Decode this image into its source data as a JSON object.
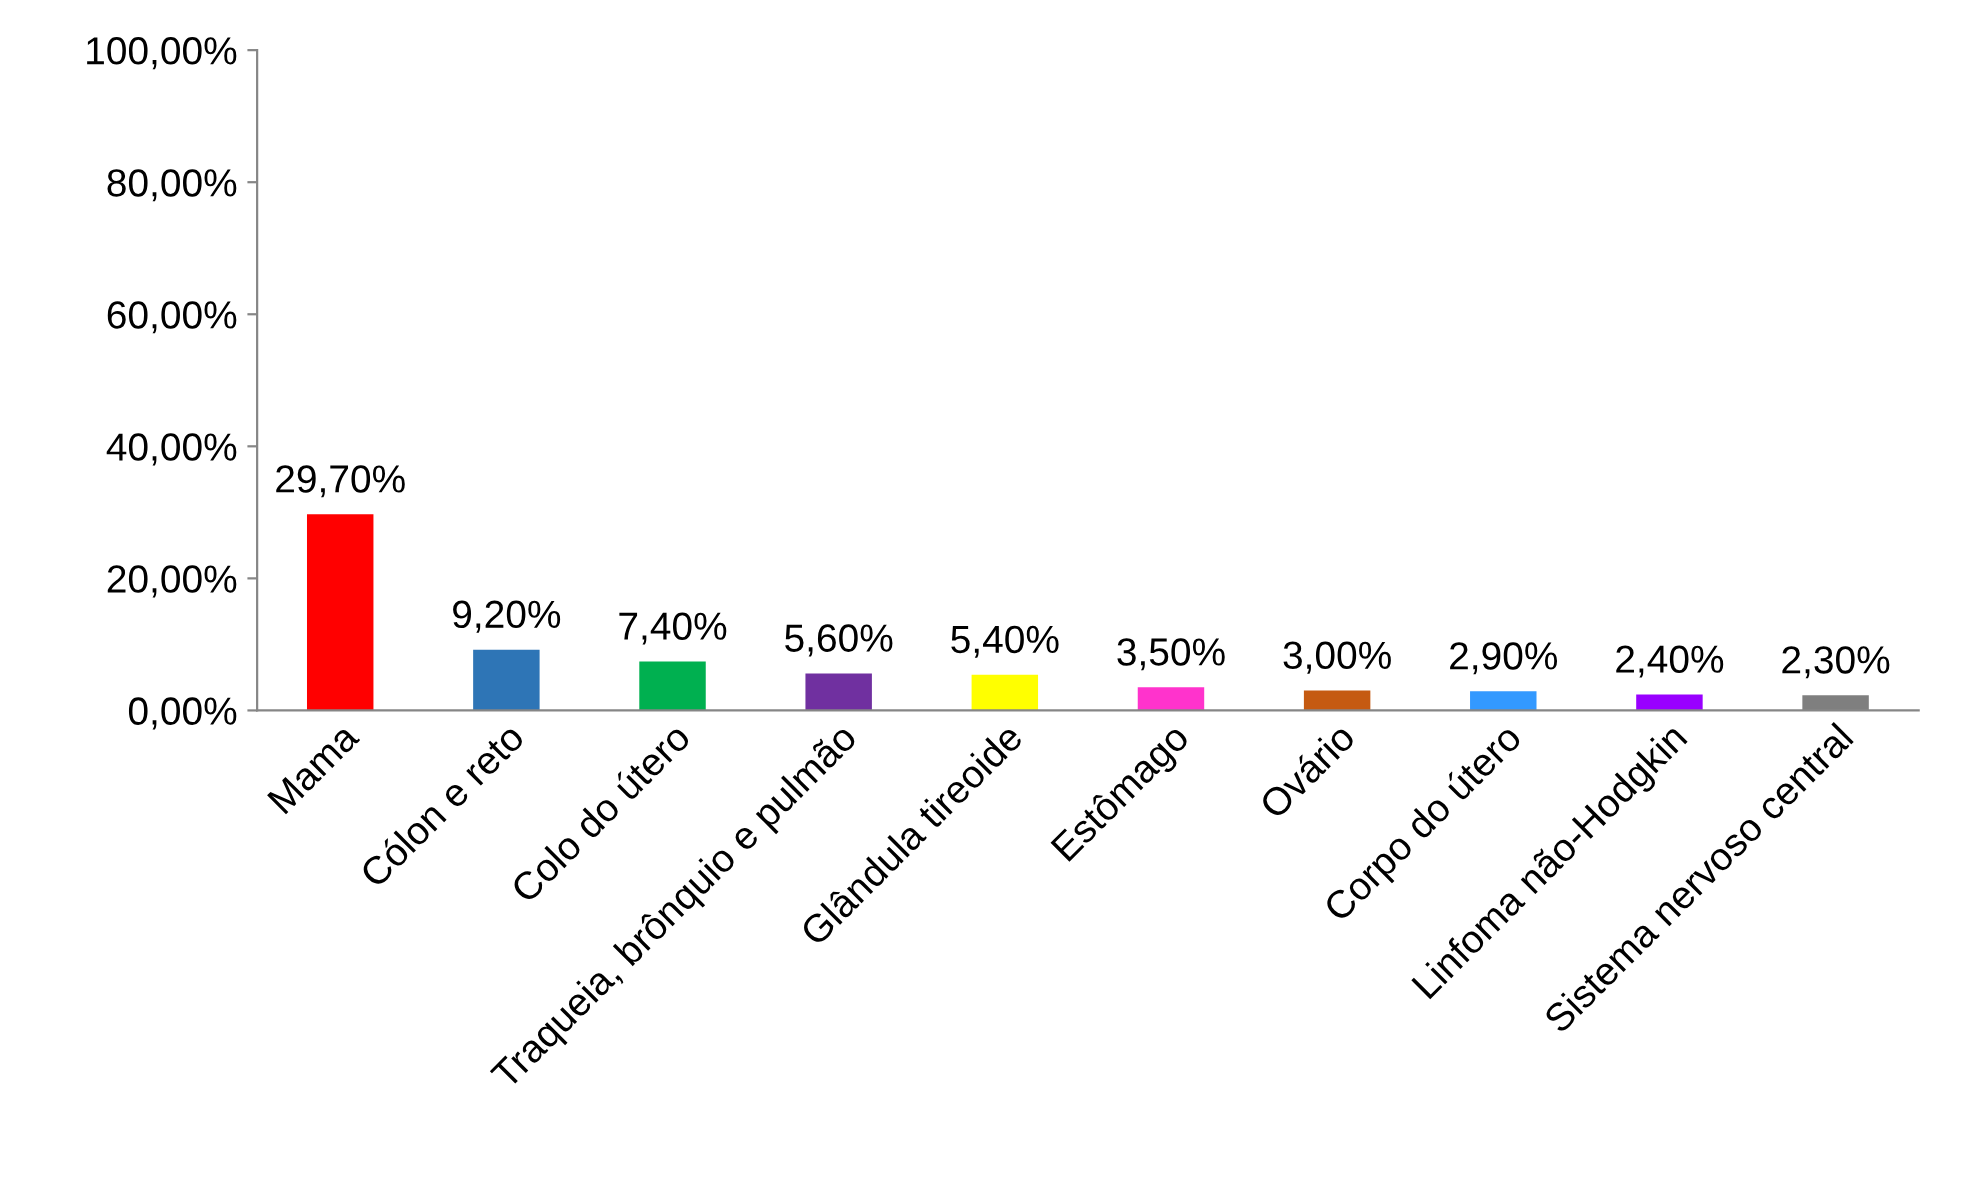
{
  "chart_data": {
    "type": "bar",
    "categories": [
      "Mama",
      "Cólon e reto",
      "Colo do útero",
      "Traqueia, brônquio e pulmão",
      "Glândula tireoide",
      "Estômago",
      "Ovário",
      "Corpo do útero",
      "Linfoma não-Hodgkin",
      "Sistema nervoso central"
    ],
    "values": [
      29.7,
      9.2,
      7.4,
      5.6,
      5.4,
      3.5,
      3.0,
      2.9,
      2.4,
      2.3
    ],
    "colors": [
      "#ff0000",
      "#2e75b6",
      "#00b050",
      "#7030a0",
      "#ffff00",
      "#ff33cc",
      "#c55a11",
      "#3399ff",
      "#9900ff",
      "#7f7f7f"
    ],
    "value_labels": [
      "29,70%",
      "9,20%",
      "7,40%",
      "5,60%",
      "5,40%",
      "3,50%",
      "3,00%",
      "2,90%",
      "2,40%",
      "2,30%"
    ],
    "ylim": [
      0,
      100
    ],
    "yticks": [
      {
        "value": 0,
        "label": "0,00%"
      },
      {
        "value": 20,
        "label": "20,00%"
      },
      {
        "value": 40,
        "label": "40,00%"
      },
      {
        "value": 60,
        "label": "60,00%"
      },
      {
        "value": 80,
        "label": "80,00%"
      },
      {
        "value": 100,
        "label": "100,00%"
      }
    ],
    "grid": false
  }
}
